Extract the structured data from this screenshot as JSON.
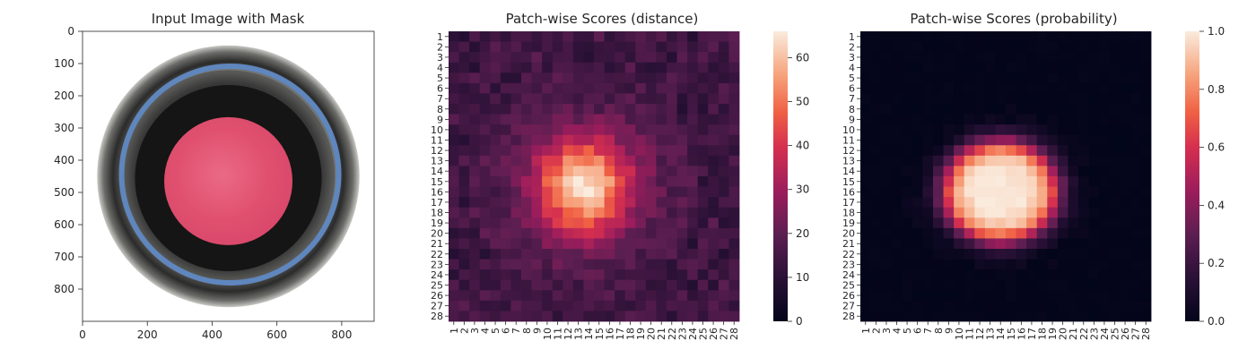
{
  "panels": {
    "image": {
      "title": "Input Image with Mask",
      "xticks": [
        0,
        200,
        400,
        600,
        800
      ],
      "yticks": [
        0,
        100,
        200,
        300,
        400,
        500,
        600,
        700,
        800
      ],
      "xlim": [
        0,
        900
      ],
      "ylim": [
        900,
        0
      ],
      "bottle": {
        "center": [
          450,
          450
        ],
        "outer_radius": 405,
        "blue_ring_radius": 335
      },
      "mask": {
        "center": [
          450,
          465
        ],
        "radius": 198,
        "color": "#e0506e"
      }
    },
    "distance": {
      "title": "Patch-wise Scores (distance)",
      "colorbar_ticks": [
        0,
        10,
        20,
        30,
        40,
        50,
        60
      ],
      "vmin": 0,
      "vmax": 66
    },
    "probability": {
      "title": "Patch-wise Scores (probability)",
      "colorbar_ticks": [
        "0.0",
        "0.2",
        "0.4",
        "0.6",
        "0.8",
        "1.0"
      ],
      "vmin": 0,
      "vmax": 1
    }
  },
  "chart_data": [
    {
      "type": "heatmap",
      "title": "Patch-wise Scores (distance)",
      "rows": [
        "1",
        "2",
        "3",
        "4",
        "5",
        "6",
        "7",
        "8",
        "9",
        "10",
        "11",
        "12",
        "13",
        "14",
        "15",
        "16",
        "17",
        "18",
        "19",
        "20",
        "21",
        "22",
        "23",
        "24",
        "25",
        "26",
        "27",
        "28"
      ],
      "cols": [
        "1",
        "2",
        "3",
        "4",
        "5",
        "6",
        "7",
        "8",
        "9",
        "10",
        "11",
        "12",
        "13",
        "14",
        "15",
        "16",
        "17",
        "18",
        "19",
        "20",
        "21",
        "22",
        "23",
        "24",
        "25",
        "26",
        "27",
        "28"
      ],
      "colorscale": "rocket",
      "value_range": [
        0,
        66
      ],
      "hotspot": {
        "center_row": 15.5,
        "center_col": 13.5,
        "peak": 66,
        "baseline": 16
      }
    },
    {
      "type": "heatmap",
      "title": "Patch-wise Scores (probability)",
      "rows": [
        "1",
        "2",
        "3",
        "4",
        "5",
        "6",
        "7",
        "8",
        "9",
        "10",
        "11",
        "12",
        "13",
        "14",
        "15",
        "16",
        "17",
        "18",
        "19",
        "20",
        "21",
        "22",
        "23",
        "24",
        "25",
        "26",
        "27",
        "28"
      ],
      "cols": [
        "1",
        "2",
        "3",
        "4",
        "5",
        "6",
        "7",
        "8",
        "9",
        "10",
        "11",
        "12",
        "13",
        "14",
        "15",
        "16",
        "17",
        "18",
        "19",
        "20",
        "21",
        "22",
        "23",
        "24",
        "25",
        "26",
        "27",
        "28"
      ],
      "colorscale": "rocket",
      "value_range": [
        0,
        1
      ],
      "hotspot": {
        "center_row": 16,
        "center_col": 14,
        "peak": 1.0,
        "baseline": 0.0
      }
    }
  ]
}
